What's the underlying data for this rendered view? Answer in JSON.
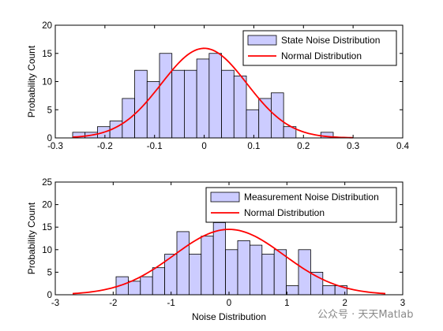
{
  "watermark": "公众号 · 天天Matlab",
  "colors": {
    "bar_fill": "#ccccff",
    "bar_edge": "#000000",
    "curve": "#ff0000"
  },
  "chart_data": [
    {
      "type": "bar",
      "xlabel": "",
      "ylabel": "Probability Count",
      "xlim": [
        -0.3,
        0.4
      ],
      "ylim": [
        0,
        20
      ],
      "xticks": [
        "-0.3",
        "-0.2",
        "-0.1",
        "0",
        "0.1",
        "0.2",
        "0.3",
        "0.4"
      ],
      "xtick_values": [
        -0.3,
        -0.2,
        -0.1,
        0,
        0.1,
        0.2,
        0.3,
        0.4
      ],
      "yticks": [
        "0",
        "5",
        "10",
        "15",
        "20"
      ],
      "ytick_values": [
        0,
        5,
        10,
        15,
        20
      ],
      "legend_position": "top-right",
      "bin_edges": [
        -0.265,
        -0.24,
        -0.215,
        -0.19,
        -0.165,
        -0.14,
        -0.115,
        -0.09,
        -0.065,
        -0.04,
        -0.015,
        0.01,
        0.035,
        0.06,
        0.085,
        0.11,
        0.135,
        0.16,
        0.185,
        0.21,
        0.235,
        0.26,
        0.285
      ],
      "counts": [
        1,
        1,
        2,
        3,
        7,
        12,
        10,
        15,
        12,
        12,
        14,
        15,
        12,
        11,
        5,
        7,
        8,
        2,
        0,
        0,
        1,
        0
      ],
      "series": [
        {
          "name": "State Noise Distribution",
          "kind": "histogram"
        },
        {
          "name": "Normal Distribution",
          "kind": "normal-curve",
          "mean": 0.0,
          "std": 0.086,
          "peak": 15.9,
          "x_range": [
            -0.265,
            0.3
          ]
        }
      ]
    },
    {
      "type": "bar",
      "xlabel": "Noise Distribution",
      "ylabel": "Probability Count",
      "xlim": [
        -3,
        3
      ],
      "ylim": [
        0,
        25
      ],
      "xticks": [
        "-3",
        "-2",
        "-1",
        "0",
        "1",
        "2",
        "3"
      ],
      "xtick_values": [
        -3,
        -2,
        -1,
        0,
        1,
        2,
        3
      ],
      "yticks": [
        "0",
        "5",
        "10",
        "15",
        "20",
        "25"
      ],
      "ytick_values": [
        0,
        5,
        10,
        15,
        20,
        25
      ],
      "legend_position": "top-right",
      "bin_edges": [
        -1.95,
        -1.74,
        -1.53,
        -1.32,
        -1.11,
        -0.9,
        -0.69,
        -0.48,
        -0.27,
        -0.06,
        0.15,
        0.36,
        0.57,
        0.78,
        0.99,
        1.2,
        1.41,
        1.62,
        1.83,
        2.04
      ],
      "counts": [
        4,
        3,
        4,
        6,
        9,
        14,
        9,
        13,
        16,
        10,
        12,
        11,
        9,
        10,
        2,
        10,
        5,
        2,
        2
      ],
      "series": [
        {
          "name": "Measurement Noise Distribution",
          "kind": "histogram"
        },
        {
          "name": "Normal Distribution",
          "kind": "normal-curve",
          "mean": 0.0,
          "std": 0.95,
          "peak": 14.5,
          "x_range": [
            -2.7,
            2.7
          ]
        }
      ]
    }
  ]
}
